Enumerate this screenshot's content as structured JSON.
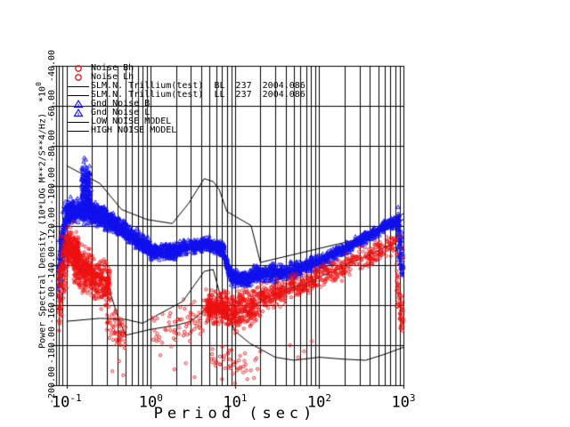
{
  "figure": {
    "background": "#ffffff",
    "x_axis": {
      "label": "Period (sec)",
      "scale": "log",
      "min": 0.075,
      "max": 1000,
      "tick_values": [
        0.1,
        1,
        10,
        100,
        1000
      ],
      "tick_labels": [
        "10^-1",
        "10^0",
        "10^1",
        "10^2",
        "10^3"
      ],
      "grid": true
    },
    "y_axis": {
      "label": "Power Spectral Density (10*LOG M**2/S**4/Hz)",
      "multiplier": "*10^0",
      "scale": "linear",
      "min": -200,
      "max": -40,
      "tick_values": [
        -40,
        -60,
        -80,
        -100,
        -120,
        -140,
        -160,
        -180,
        -200
      ],
      "tick_labels": [
        "-40.00",
        "-60.00",
        "-80.00",
        "-100.00",
        "-120.00",
        "-140.00",
        "-160.00",
        "-180.00",
        "-200.00"
      ],
      "grid": true
    },
    "legend": {
      "items": [
        {
          "label": "Noise Bh",
          "marker": "circle",
          "color": "#ee1111"
        },
        {
          "label": "Noise Lh",
          "marker": "circle",
          "color": "#ee1111"
        },
        {
          "label": "SLM.N. Trillium(test)  BL  237  2004.086",
          "marker": "line",
          "color": "#000000"
        },
        {
          "label": "SLM.N. Trillium(test)  LL  237  2004.086",
          "marker": "line",
          "color": "#000000"
        },
        {
          "label": "Gnd Noise B",
          "marker": "triangle",
          "color": "#1111ee"
        },
        {
          "label": "Gnd Noise L",
          "marker": "triangle",
          "color": "#1111ee"
        },
        {
          "label": "LOW NOISE MODEL",
          "marker": "line",
          "color": "#000000"
        },
        {
          "label": "HIGH NOISE MODEL",
          "marker": "line",
          "color": "#000000"
        }
      ]
    }
  },
  "chart_data": {
    "type": "scatter",
    "xlabel": "Period (sec)",
    "ylabel": "Power Spectral Density (10*LOG M**2/S**4/Hz) *10^0",
    "xlim": [
      0.075,
      1000
    ],
    "ylim": [
      -200,
      -40
    ],
    "band_format": "[period_min_sec, period_max_sec, dB_at_min, dB_at_max, dB_spread, n_points]",
    "series": [
      {
        "name": "Gnd Noise B",
        "kind": "scatter",
        "marker": "triangle",
        "color": "#1111ee",
        "bands": [
          [
            0.08,
            0.1,
            -145,
            -114,
            16,
            150
          ],
          [
            0.1,
            0.15,
            -113,
            -112,
            6,
            260
          ],
          [
            0.15,
            0.2,
            -109,
            -111,
            9,
            220
          ],
          [
            0.15,
            0.19,
            -98,
            -96,
            9,
            80
          ],
          [
            0.2,
            0.3,
            -114,
            -116,
            6,
            240
          ],
          [
            0.3,
            0.5,
            -117,
            -122,
            5,
            260
          ],
          [
            0.5,
            1,
            -123,
            -132,
            4.5,
            280
          ],
          [
            1,
            2,
            -133,
            -133,
            4,
            260
          ],
          [
            2,
            4.5,
            -132,
            -129,
            4,
            240
          ],
          [
            4.5,
            7.5,
            -129,
            -132,
            3.5,
            200
          ]
        ],
        "outliers": [
          [
            0.152,
            -97
          ],
          [
            0.156,
            -92
          ],
          [
            0.159,
            -88
          ],
          [
            0.162,
            -86
          ],
          [
            0.165,
            -90
          ],
          [
            0.169,
            -87
          ],
          [
            0.173,
            -93
          ],
          [
            0.177,
            -99
          ],
          [
            0.184,
            -103
          ],
          [
            0.19,
            -107
          ]
        ]
      },
      {
        "name": "Gnd Noise L",
        "kind": "scatter",
        "marker": "triangle",
        "color": "#1111ee",
        "bands": [
          [
            7.5,
            8.8,
            -135,
            -145,
            4,
            90
          ],
          [
            8.8,
            15,
            -146,
            -147,
            4,
            220
          ],
          [
            15,
            30,
            -145,
            -143,
            4.5,
            220
          ],
          [
            30,
            60,
            -144,
            -142,
            4.5,
            200
          ],
          [
            60,
            120,
            -141,
            -137,
            4,
            180
          ],
          [
            120,
            250,
            -136,
            -130,
            3.5,
            170
          ],
          [
            250,
            500,
            -129,
            -123,
            3,
            160
          ],
          [
            500,
            900,
            -122,
            -117,
            3,
            150
          ],
          [
            860,
            1000,
            -124,
            -138,
            13,
            70
          ]
        ],
        "outliers": []
      },
      {
        "name": "Noise Bh",
        "kind": "scatter",
        "marker": "circle",
        "color": "#ee1111",
        "bands": [
          [
            0.08,
            0.1,
            -155,
            -133,
            20,
            140
          ],
          [
            0.1,
            0.14,
            -131,
            -133,
            9,
            260
          ],
          [
            0.12,
            0.2,
            -140,
            -144,
            12,
            300
          ],
          [
            0.2,
            0.33,
            -146,
            -150,
            12,
            220
          ],
          [
            0.3,
            0.5,
            -168,
            -176,
            12,
            60
          ],
          [
            1,
            2.2,
            -173,
            -171,
            12,
            30
          ],
          [
            2.2,
            4.5,
            -169,
            -166,
            13,
            40
          ]
        ],
        "outliers": [
          [
            0.35,
            -193
          ],
          [
            0.42,
            -188
          ],
          [
            0.47,
            -195
          ],
          [
            1.3,
            -185
          ],
          [
            1.9,
            -192
          ],
          [
            2.6,
            -189
          ],
          [
            3.3,
            -196
          ],
          [
            0.11,
            -121
          ],
          [
            0.12,
            -118
          ]
        ]
      },
      {
        "name": "Noise Lh",
        "kind": "scatter",
        "marker": "circle",
        "color": "#ee1111",
        "bands": [
          [
            4.5,
            8,
            -161,
            -161,
            9,
            260
          ],
          [
            8,
            20,
            -164,
            -160,
            10,
            300
          ],
          [
            5,
            20,
            -187,
            -189,
            8,
            45
          ],
          [
            20,
            40,
            -156,
            -153,
            7,
            150
          ],
          [
            40,
            90,
            -151,
            -148,
            6,
            130
          ],
          [
            90,
            200,
            -146,
            -142,
            6,
            110
          ],
          [
            200,
            450,
            -140,
            -135,
            6,
            90
          ],
          [
            450,
            820,
            -133,
            -129,
            6,
            70
          ],
          [
            820,
            1000,
            -145,
            -168,
            14,
            60
          ]
        ],
        "outliers": [
          [
            7,
            -197
          ],
          [
            10,
            -199
          ],
          [
            14,
            -197
          ],
          [
            45,
            -180
          ],
          [
            56,
            -186
          ],
          [
            66,
            -183
          ],
          [
            82,
            -178
          ],
          [
            850,
            -127
          ],
          [
            920,
            -125
          ],
          [
            960,
            -131
          ],
          [
            990,
            -136
          ]
        ]
      },
      {
        "name": "SLM.N. Trillium(test) BL 237 2004.086",
        "kind": "line",
        "color": "#000000",
        "points": [
          [
            0.08,
            -145
          ],
          [
            0.09,
            -125
          ],
          [
            0.1,
            -113
          ],
          [
            0.13,
            -112
          ],
          [
            0.16,
            -108
          ],
          [
            0.2,
            -113
          ],
          [
            0.3,
            -116
          ],
          [
            0.4,
            -119
          ],
          [
            0.55,
            -122
          ],
          [
            0.7,
            -126
          ],
          [
            0.9,
            -131
          ],
          [
            1.2,
            -133
          ],
          [
            2,
            -133
          ],
          [
            3,
            -131
          ],
          [
            4,
            -129
          ],
          [
            5,
            -129
          ],
          [
            6.5,
            -130
          ],
          [
            7.5,
            -133
          ],
          [
            8.3,
            -143
          ],
          [
            9,
            -146
          ],
          [
            12,
            -147
          ],
          [
            15,
            -146
          ],
          [
            18,
            -144
          ],
          [
            22,
            -145
          ],
          [
            27,
            -143
          ],
          [
            33,
            -145
          ],
          [
            40,
            -143
          ],
          [
            50,
            -144
          ],
          [
            60,
            -142
          ],
          [
            80,
            -140
          ],
          [
            100,
            -138
          ],
          [
            130,
            -136
          ],
          [
            170,
            -133
          ],
          [
            220,
            -131
          ],
          [
            300,
            -127
          ],
          [
            400,
            -124
          ],
          [
            550,
            -121
          ],
          [
            700,
            -119
          ],
          [
            850,
            -118
          ],
          [
            1000,
            -117
          ]
        ]
      },
      {
        "name": "SLM.N. Trillium(test) LL 237 2004.086",
        "kind": "line",
        "color": "#000000",
        "points": [
          [
            0.08,
            -150
          ],
          [
            0.09,
            -140
          ],
          [
            0.1,
            -132
          ],
          [
            0.13,
            -135
          ],
          [
            0.17,
            -141
          ],
          [
            0.22,
            -145
          ],
          [
            0.3,
            -148
          ],
          [
            0.4,
            -165
          ],
          [
            0.5,
            -175
          ],
          [
            1,
            -172
          ],
          [
            2,
            -170
          ],
          [
            3,
            -168
          ],
          [
            4.5,
            -162
          ],
          [
            6,
            -160
          ],
          [
            8,
            -162
          ],
          [
            12,
            -164
          ],
          [
            16,
            -162
          ],
          [
            20,
            -158
          ],
          [
            25,
            -156
          ],
          [
            32,
            -154
          ],
          [
            45,
            -151
          ],
          [
            60,
            -150
          ],
          [
            80,
            -148
          ],
          [
            110,
            -145
          ],
          [
            150,
            -143
          ],
          [
            220,
            -139
          ],
          [
            300,
            -137
          ],
          [
            420,
            -134
          ],
          [
            600,
            -131
          ],
          [
            800,
            -129
          ],
          [
            1000,
            -145
          ]
        ]
      },
      {
        "name": "LOW NOISE MODEL",
        "kind": "line",
        "color": "#000000",
        "points": [
          [
            0.1,
            -168
          ],
          [
            0.25,
            -166.5
          ],
          [
            0.5,
            -167
          ],
          [
            0.8,
            -169
          ],
          [
            1.3,
            -164
          ],
          [
            2.4,
            -158
          ],
          [
            4.3,
            -143
          ],
          [
            5.5,
            -142
          ],
          [
            7,
            -158
          ],
          [
            10,
            -173
          ],
          [
            15,
            -179
          ],
          [
            30,
            -186
          ],
          [
            50,
            -187.5
          ],
          [
            100,
            -186
          ],
          [
            200,
            -187
          ],
          [
            355,
            -187.5
          ],
          [
            600,
            -184.5
          ],
          [
            1000,
            -181
          ]
        ]
      },
      {
        "name": "HIGH NOISE MODEL",
        "kind": "line",
        "color": "#000000",
        "points": [
          [
            0.1,
            -90
          ],
          [
            0.25,
            -99
          ],
          [
            0.45,
            -112
          ],
          [
            0.9,
            -117
          ],
          [
            1.8,
            -119
          ],
          [
            2.8,
            -109
          ],
          [
            4.3,
            -96.5
          ],
          [
            5.5,
            -98
          ],
          [
            6.5,
            -102
          ],
          [
            8,
            -113
          ],
          [
            15.5,
            -120
          ],
          [
            20,
            -138.5
          ],
          [
            355,
            -126
          ],
          [
            1000,
            -114
          ]
        ]
      }
    ]
  }
}
